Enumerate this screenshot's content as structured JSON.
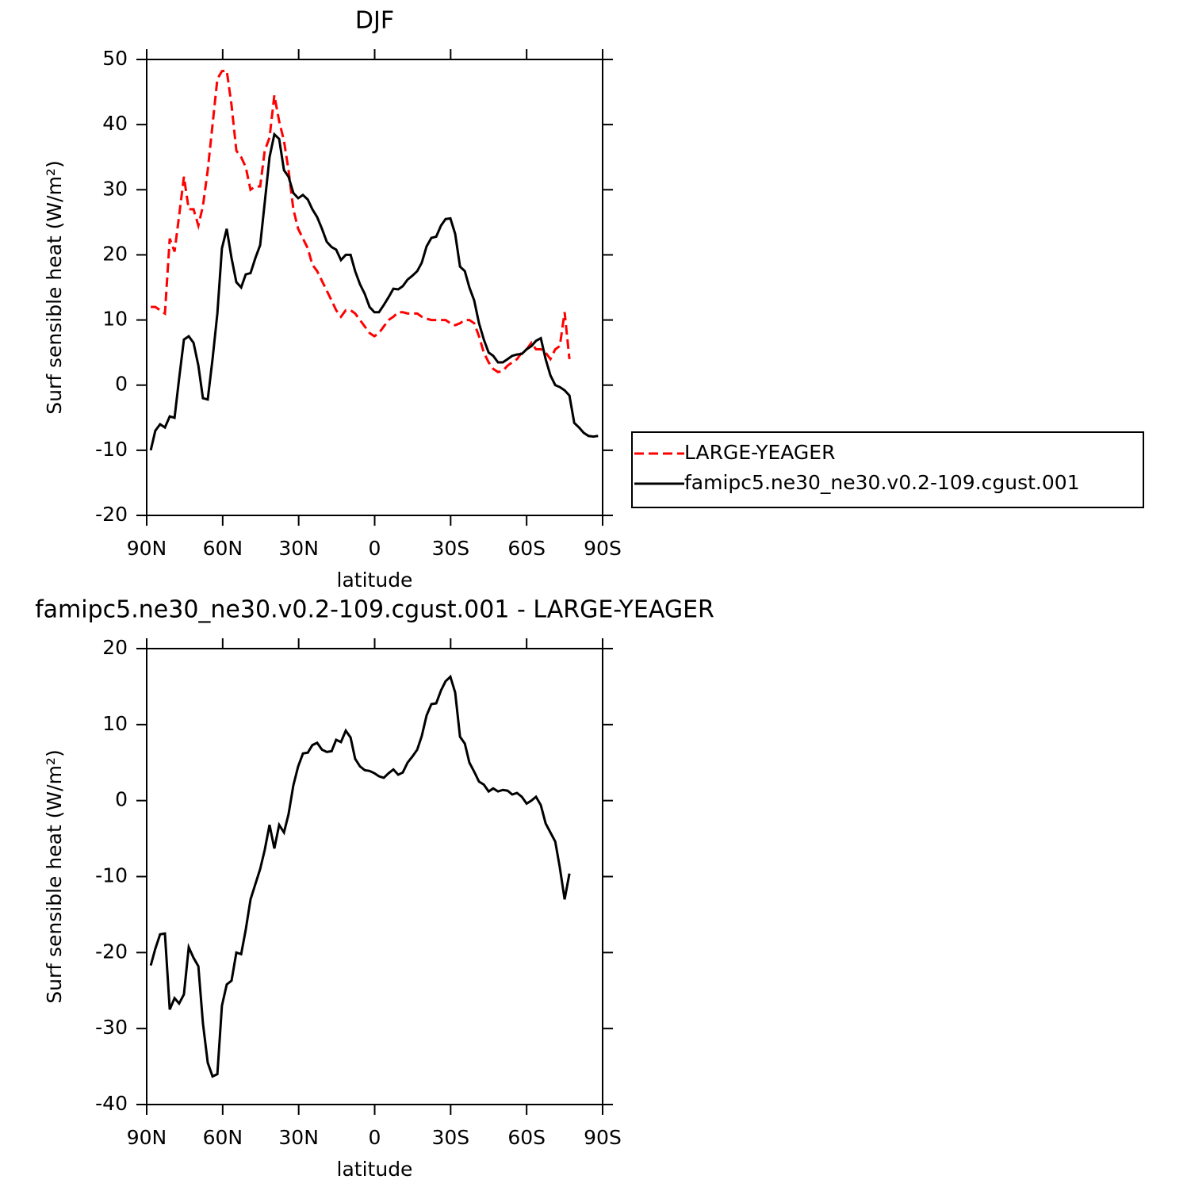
{
  "chart_data": [
    {
      "type": "line",
      "title": "DJF",
      "xlabel": "latitude",
      "ylabel": "Surf sensible heat (W/m²)",
      "x": [
        88.4,
        86.6,
        84.7,
        82.8,
        80.9,
        79.0,
        77.2,
        75.3,
        73.4,
        71.5,
        69.6,
        67.8,
        65.9,
        64.0,
        62.1,
        60.3,
        58.4,
        56.5,
        54.6,
        52.7,
        50.9,
        49.0,
        47.1,
        45.2,
        43.4,
        41.5,
        39.6,
        37.7,
        35.8,
        34.0,
        32.1,
        30.2,
        28.3,
        26.4,
        24.6,
        22.7,
        20.8,
        18.9,
        17.0,
        15.2,
        13.3,
        11.4,
        9.5,
        7.7,
        5.8,
        3.9,
        2.0,
        0.1,
        -1.7,
        -3.6,
        -5.5,
        -7.4,
        -9.3,
        -11.1,
        -13.0,
        -14.9,
        -16.8,
        -18.6,
        -20.5,
        -22.4,
        -24.3,
        -26.2,
        -28.0,
        -29.9,
        -31.8,
        -33.7,
        -35.6,
        -37.4,
        -39.3,
        -41.2,
        -43.1,
        -45.0,
        -46.8,
        -48.7,
        -50.6,
        -52.5,
        -54.3,
        -56.2,
        -58.1,
        -60.0,
        -61.9,
        -63.7,
        -65.6,
        -67.5,
        -69.4,
        -71.3,
        -73.1,
        -75.0,
        -76.9,
        -78.8,
        -80.7,
        -82.5,
        -84.4,
        -86.3,
        -88.2
      ],
      "series": [
        {
          "name": "LARGE-YEAGER",
          "color": "#ff0000",
          "line_style": "dashed",
          "values": [
            12,
            12,
            11.5,
            11,
            22.5,
            20.5,
            26,
            32,
            27,
            27,
            24.5,
            27.5,
            33,
            40,
            47,
            48.2,
            48.3,
            43,
            36,
            35,
            33.5,
            30,
            30.5,
            30.5,
            36,
            38,
            44.5,
            40.5,
            37.5,
            33,
            27,
            24,
            22.5,
            21,
            18.5,
            17.5,
            16,
            14.5,
            13,
            11.5,
            10.5,
            11.5,
            11.5,
            11,
            10,
            9,
            8,
            7.5,
            8,
            9,
            10,
            10.5,
            11.2,
            11.2,
            11,
            11,
            11,
            10.5,
            10.2,
            10,
            10,
            10,
            10,
            9.5,
            9.2,
            9.5,
            10,
            10,
            9.5,
            7.5,
            5,
            3.5,
            2.5,
            2,
            2.2,
            3,
            3.5,
            4,
            5,
            5.5,
            6.5,
            5.5,
            5.5,
            5,
            4,
            5.5,
            6,
            11.2,
            4,
            null,
            null,
            null,
            null,
            null,
            null
          ]
        },
        {
          "name": "famipc5.ne30_ne30.v0.2-109.cgust.001",
          "color": "#000000",
          "line_style": "solid",
          "values": [
            -10,
            -7,
            -6,
            -6.5,
            -4.8,
            -5,
            1,
            7,
            7.5,
            6.5,
            3,
            -2,
            -2.2,
            4,
            11,
            21,
            24,
            19.5,
            15.8,
            15,
            17,
            17.2,
            19.5,
            21.5,
            28,
            35,
            38.5,
            37.8,
            33,
            32,
            29.5,
            28.7,
            29.2,
            28.5,
            27,
            25.8,
            24,
            22,
            21.2,
            20.8,
            19.2,
            20,
            20,
            17.5,
            15.5,
            14,
            12,
            11.2,
            11.2,
            12.3,
            13.5,
            14.8,
            14.7,
            15.2,
            16.2,
            16.8,
            17.5,
            18.8,
            21.3,
            22.6,
            22.8,
            24.5,
            25.5,
            25.6,
            23.2,
            18.2,
            17.5,
            15,
            13,
            9.5,
            7,
            5,
            4.5,
            3.5,
            3.5,
            4,
            4.5,
            4.7,
            4.8,
            5.5,
            6,
            6.8,
            7.2,
            4,
            1.5,
            0,
            -0.3,
            -0.8,
            -1.6,
            -5.8,
            -6.5,
            -7.3,
            -7.8,
            -7.9,
            -7.8
          ]
        }
      ],
      "xlim": [
        90,
        -90
      ],
      "xticks": [
        {
          "value": 90,
          "label": "90N"
        },
        {
          "value": 60,
          "label": "60N"
        },
        {
          "value": 30,
          "label": "30N"
        },
        0,
        {
          "value": -30,
          "label": "30S"
        },
        {
          "value": -60,
          "label": "60S"
        },
        {
          "value": -90,
          "label": "90S"
        }
      ],
      "ylim": [
        -20,
        50
      ],
      "yticks": [
        -20,
        -10,
        0,
        10,
        20,
        30,
        40,
        50
      ],
      "legend": "right"
    },
    {
      "type": "line",
      "title": "famipc5.ne30_ne30.v0.2-109.cgust.001 - LARGE-YEAGER",
      "xlabel": "latitude",
      "ylabel": "Surf sensible heat (W/m²)",
      "x": [
        88.4,
        86.6,
        84.7,
        82.8,
        80.9,
        79.0,
        77.2,
        75.3,
        73.4,
        71.5,
        69.6,
        67.8,
        65.9,
        64.0,
        62.1,
        60.3,
        58.4,
        56.5,
        54.6,
        52.7,
        50.9,
        49.0,
        47.1,
        45.2,
        43.4,
        41.5,
        39.6,
        37.7,
        35.8,
        34.0,
        32.1,
        30.2,
        28.3,
        26.4,
        24.6,
        22.7,
        20.8,
        18.9,
        17.0,
        15.2,
        13.3,
        11.4,
        9.5,
        7.7,
        5.8,
        3.9,
        2.0,
        0.1,
        -1.7,
        -3.6,
        -5.5,
        -7.4,
        -9.3,
        -11.1,
        -13.0,
        -14.9,
        -16.8,
        -18.6,
        -20.5,
        -22.4,
        -24.3,
        -26.2,
        -28.0,
        -29.9,
        -31.8,
        -33.7,
        -35.6,
        -37.4,
        -39.3,
        -41.2,
        -43.1,
        -45.0,
        -46.8,
        -48.7,
        -50.6,
        -52.5,
        -54.3,
        -56.2,
        -58.1,
        -60.0,
        -61.9,
        -63.7,
        -65.6,
        -67.5,
        -69.4,
        -71.3,
        -73.1,
        -75.0,
        -76.9,
        -78.8,
        -80.7,
        -82.5,
        -84.4,
        -86.3,
        -88.2
      ],
      "values": [
        -21.7,
        -19.5,
        -17.6,
        -17.5,
        -27.5,
        -26,
        -26.7,
        -25.5,
        -19.3,
        -20.7,
        -21.8,
        -29.3,
        -34.5,
        -36.3,
        -36,
        -27,
        -24.2,
        -23.7,
        -20,
        -20.2,
        -17,
        -13,
        -11,
        -9,
        -6.5,
        -3.2,
        -6.3,
        -3.2,
        -4.2,
        -1.8,
        2,
        4.5,
        6.2,
        6.3,
        7.3,
        7.6,
        6.7,
        6.4,
        6.5,
        8,
        7.7,
        9.2,
        8.3,
        5.5,
        4.5,
        4,
        3.9,
        3.6,
        3.2,
        3,
        3.6,
        4.1,
        3.4,
        3.7,
        5,
        5.8,
        6.7,
        8.5,
        11.2,
        12.7,
        12.8,
        14.5,
        15.7,
        16.3,
        14.2,
        8.4,
        7.5,
        5,
        3.8,
        2.5,
        2.1,
        1.2,
        1.6,
        1.2,
        1.4,
        1.3,
        0.8,
        1,
        0.5,
        -0.4,
        0,
        0.5,
        -0.6,
        -3,
        -4.2,
        -5.4,
        -8.8,
        -13,
        -9.6,
        null,
        null,
        null,
        null,
        null,
        null
      ],
      "color": "#000000",
      "xlim": [
        90,
        -90
      ],
      "xticks": [
        {
          "value": 90,
          "label": "90N"
        },
        {
          "value": 60,
          "label": "60N"
        },
        {
          "value": 30,
          "label": "30N"
        },
        0,
        {
          "value": -30,
          "label": "30S"
        },
        {
          "value": -60,
          "label": "60S"
        },
        {
          "value": -90,
          "label": "90S"
        }
      ],
      "ylim": [
        -40,
        20
      ],
      "yticks": [
        -40,
        -30,
        -20,
        -10,
        0,
        10,
        20
      ]
    }
  ]
}
